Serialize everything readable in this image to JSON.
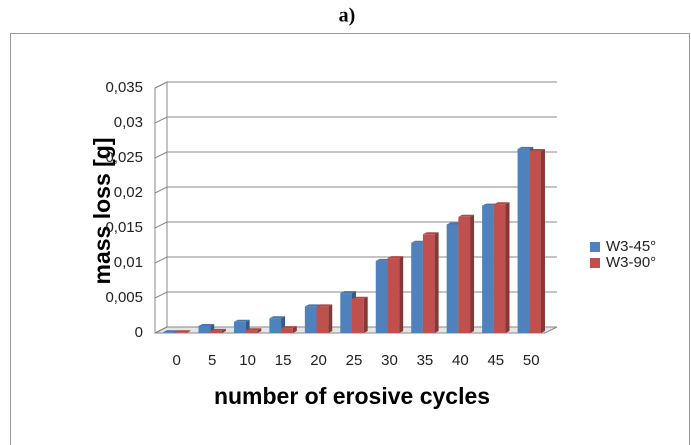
{
  "chart_data": {
    "type": "bar",
    "title": "a)",
    "x_label": "number of erosive cycles",
    "y_label": "mass loss [g]",
    "categories": [
      "0",
      "5",
      "10",
      "15",
      "20",
      "25",
      "30",
      "35",
      "40",
      "45",
      "50"
    ],
    "series": [
      {
        "name": "W3-45°",
        "color": "#4f81bd",
        "values": [
          0.0001,
          0.001,
          0.0016,
          0.0021,
          0.0038,
          0.0057,
          0.0103,
          0.0129,
          0.0155,
          0.0182,
          0.0263
        ]
      },
      {
        "name": "W3-90°",
        "color": "#c0504d",
        "values": [
          0.0001,
          0.0003,
          0.0004,
          0.0007,
          0.0038,
          0.0049,
          0.0107,
          0.0141,
          0.0166,
          0.0184,
          0.026
        ]
      }
    ],
    "ylim": [
      0,
      0.035
    ],
    "yticks": [
      0,
      {
        "value": 0.005,
        "label": "0,005"
      },
      {
        "value": 0.01,
        "label": "0,01"
      },
      {
        "value": 0.015,
        "label": "0,015"
      },
      {
        "value": 0.02,
        "label": "0,02"
      },
      {
        "value": 0.025,
        "label": "0,025"
      },
      {
        "value": 0.03,
        "label": "0,03"
      },
      {
        "value": 0.035,
        "label": "0,035"
      }
    ],
    "grid": true,
    "legend": "right"
  }
}
